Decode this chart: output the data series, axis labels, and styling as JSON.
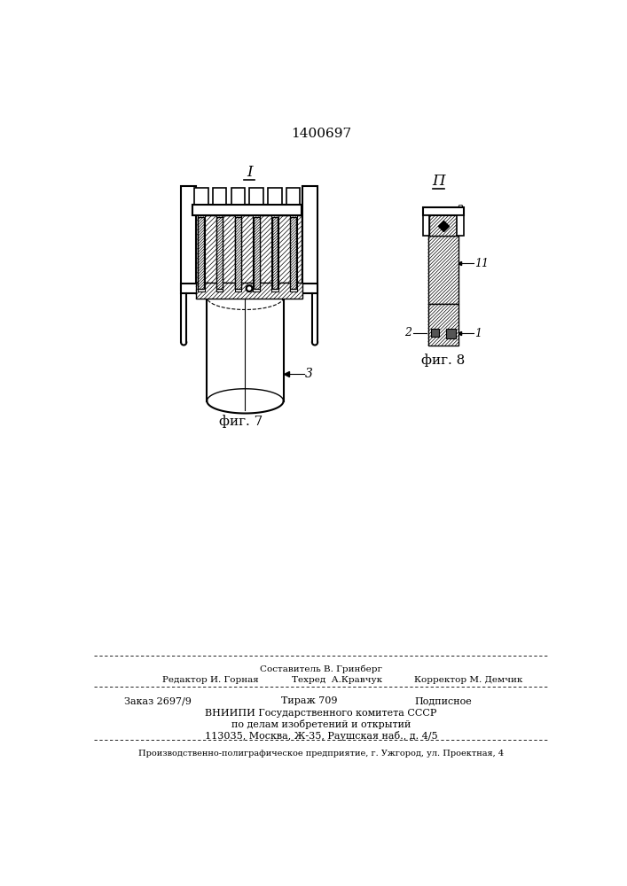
{
  "patent_number": "1400697",
  "bg": "#ffffff",
  "lc": "#000000",
  "fig7_label": "фиг. 7",
  "fig8_label": "фиг. 8",
  "view_I": "I",
  "view_II": "П",
  "lbl_3": "3",
  "lbl_1": "1",
  "lbl_2": "2",
  "lbl_11": "11",
  "f1": "Составитель В. Гринберг",
  "f2a": "Редактор И. Горная",
  "f2b": "Техред  А.Кравчук",
  "f2c": "Корректор М. Демчик",
  "f3a": "Заказ 2697/9",
  "f3b": "Тираж 709",
  "f3c": "Подписное",
  "f4": "ВНИИПИ Государственного комитета СССР",
  "f5": "по делам изобретений и открытий",
  "f6": "113035, Москва, Ж-35, Раушская наб., д. 4/5",
  "f7": "Производственно-полиграфическое предприятие, г. Ужгород, ул. Проектная, 4"
}
